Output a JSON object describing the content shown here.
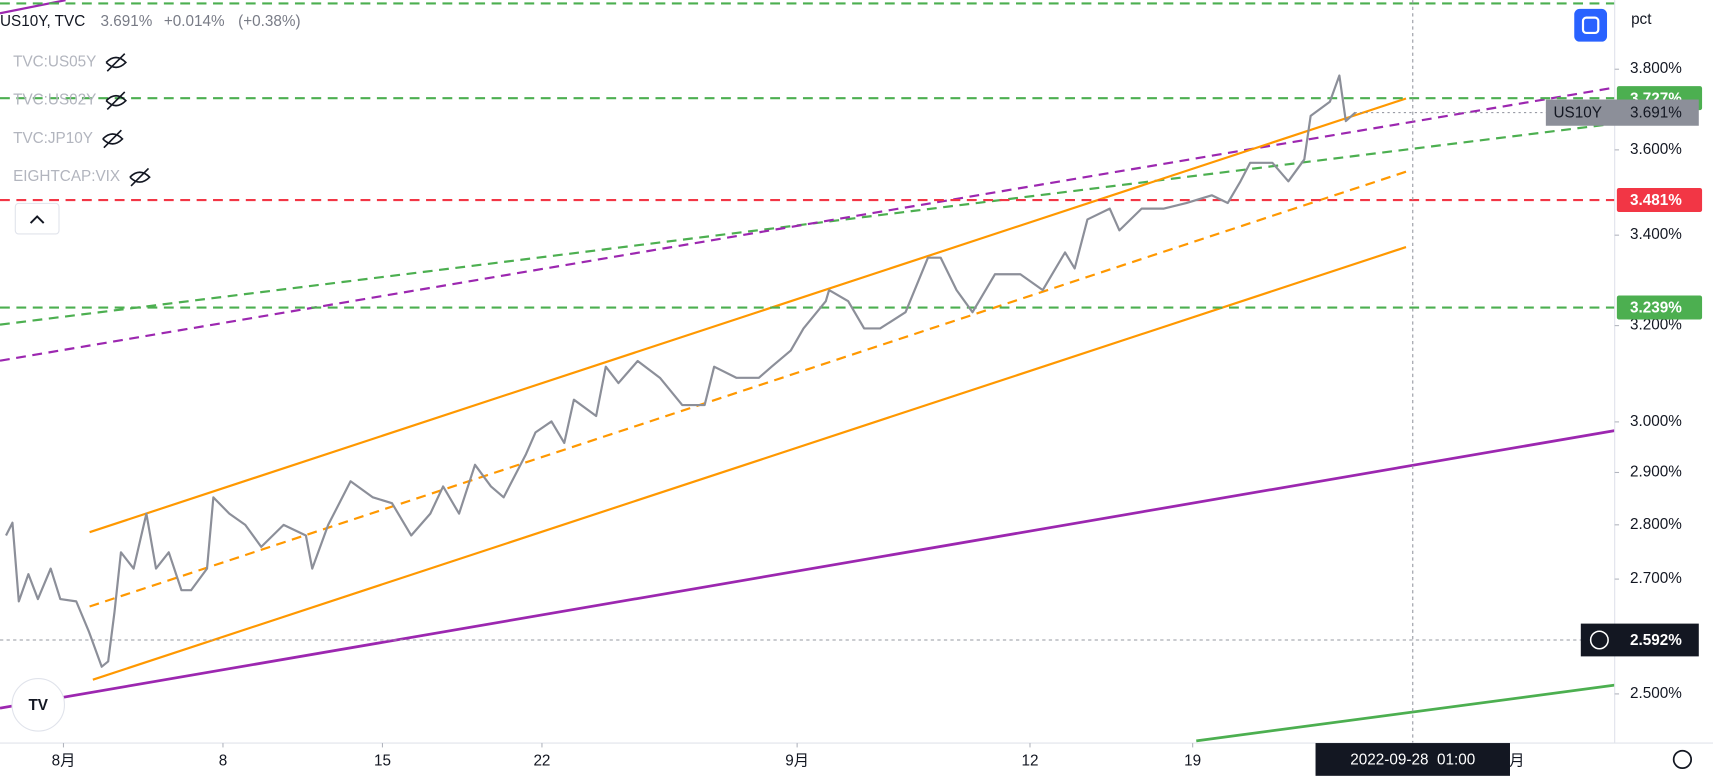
{
  "chart_data": {
    "type": "line",
    "symbol_title": "US10Y, TVC",
    "legend_values": [
      "3.691%",
      "+0.014%",
      "(+0.38%)"
    ],
    "hidden_series": [
      "TVC:US05Y",
      "TVC:US02Y",
      "TVC:JP10Y",
      "EIGHTCAP:VIX"
    ],
    "y_axis_label": "pct",
    "log_scale": true,
    "xlim": [
      -1.99,
      48.63
    ],
    "ylim": [
      2.419,
      3.98
    ],
    "xticks": [
      {
        "value": 0,
        "label": "8月"
      },
      {
        "value": 5,
        "label": "8"
      },
      {
        "value": 10,
        "label": "15"
      },
      {
        "value": 15,
        "label": "22"
      },
      {
        "value": 23,
        "label": "9月"
      },
      {
        "value": 30.3,
        "label": "12"
      },
      {
        "value": 35.4,
        "label": "19"
      },
      {
        "value": 45.3,
        "label": "10月"
      }
    ],
    "yticks": [
      {
        "value": 2.5,
        "label": "2.500%"
      },
      {
        "value": 2.7,
        "label": "2.700%"
      },
      {
        "value": 2.8,
        "label": "2.800%"
      },
      {
        "value": 2.9,
        "label": "2.900%"
      },
      {
        "value": 3.0,
        "label": "3.000%"
      },
      {
        "value": 3.2,
        "label": "3.200%"
      },
      {
        "value": 3.4,
        "label": "3.400%"
      },
      {
        "value": 3.6,
        "label": "3.600%"
      },
      {
        "value": 3.8,
        "label": "3.800%"
      }
    ],
    "series": [
      {
        "name": "US10Y",
        "color": "#8c8f99",
        "x": [
          -1.8,
          -1.6,
          -1.4,
          -1.1,
          -0.8,
          -0.4,
          -0.1,
          0.4,
          0.8,
          1.2,
          1.4,
          1.6,
          1.8,
          2.2,
          2.6,
          2.9,
          3.3,
          3.7,
          4.0,
          4.5,
          4.7,
          5.2,
          5.7,
          6.2,
          6.9,
          7.6,
          7.8,
          8.3,
          9.0,
          9.7,
          10.3,
          10.9,
          11.5,
          11.9,
          12.4,
          12.9,
          13.4,
          13.8,
          14.5,
          14.8,
          15.3,
          15.7,
          16.0,
          16.7,
          17.0,
          17.4,
          18.0,
          18.7,
          19.4,
          20.1,
          20.4,
          21.1,
          21.8,
          22.2,
          22.8,
          23.2,
          23.9,
          24.0,
          24.6,
          25.1,
          25.6,
          26.4,
          27.1,
          27.5,
          28.0,
          28.5,
          29.2,
          30.0,
          30.7,
          31.4,
          31.7,
          32.1,
          32.8,
          33.1,
          33.8,
          34.5,
          35.2,
          36.0,
          36.5,
          36.9,
          37.2,
          37.9,
          38.4,
          38.9,
          39.1,
          39.7,
          40.0,
          40.2,
          40.5
        ],
        "values": [
          2.78,
          2.804,
          2.66,
          2.709,
          2.664,
          2.719,
          2.664,
          2.66,
          2.606,
          2.546,
          2.555,
          2.641,
          2.749,
          2.719,
          2.821,
          2.719,
          2.749,
          2.68,
          2.68,
          2.719,
          2.852,
          2.821,
          2.8,
          2.759,
          2.8,
          2.78,
          2.719,
          2.8,
          2.883,
          2.852,
          2.841,
          2.78,
          2.821,
          2.873,
          2.821,
          2.915,
          2.873,
          2.852,
          2.936,
          2.979,
          3.001,
          2.958,
          3.045,
          3.012,
          3.113,
          3.079,
          3.125,
          3.09,
          3.034,
          3.034,
          3.113,
          3.09,
          3.09,
          3.113,
          3.147,
          3.194,
          3.253,
          3.277,
          3.253,
          3.194,
          3.194,
          3.229,
          3.349,
          3.349,
          3.277,
          3.229,
          3.312,
          3.312,
          3.277,
          3.361,
          3.325,
          3.436,
          3.461,
          3.411,
          3.461,
          3.461,
          3.474,
          3.492,
          3.474,
          3.525,
          3.569,
          3.569,
          3.525,
          3.577,
          3.683,
          3.718,
          3.784,
          3.67,
          3.691
        ]
      }
    ],
    "last_price": {
      "value": 3.691,
      "label": "3.691%"
    },
    "price_lines": [
      {
        "value": 3.727,
        "label": "3.727%",
        "color": "#4caf50"
      },
      {
        "value": 3.481,
        "label": "3.481%",
        "color": "#f23645"
      },
      {
        "value": 3.239,
        "label": "3.239%",
        "color": "#4caf50"
      }
    ],
    "crosshair": {
      "x": 42.3,
      "x_label": "2022-09-28  01:00",
      "value": 2.592,
      "label": "2.592%"
    }
  }
}
